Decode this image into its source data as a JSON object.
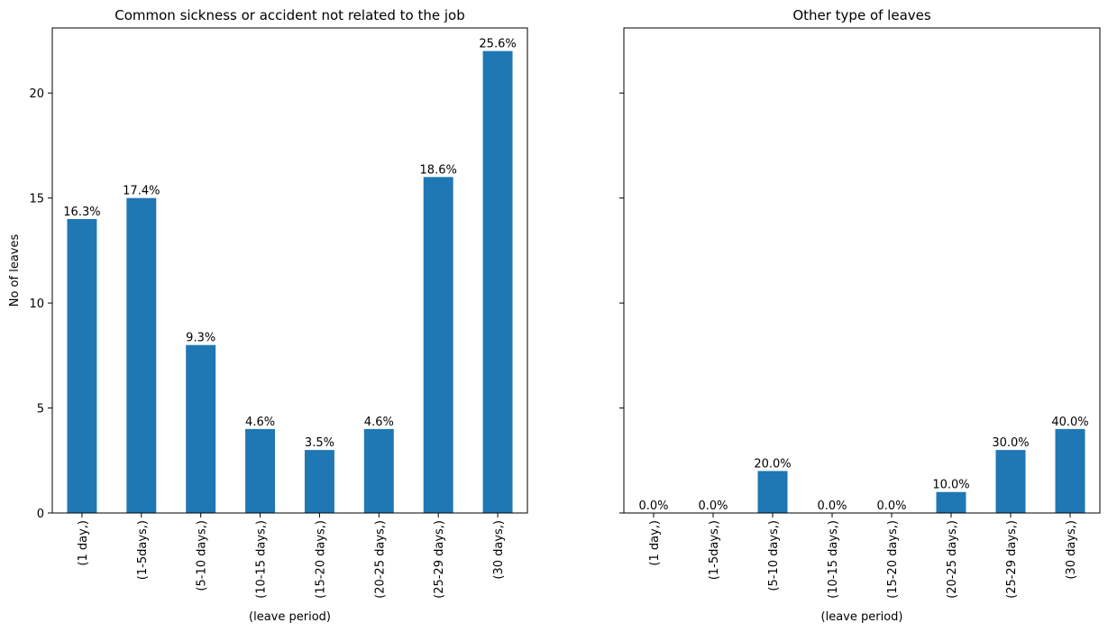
{
  "chart_data": [
    {
      "type": "bar",
      "title": "Common sickness  or accident not related to the job",
      "xlabel": "(leave period)",
      "ylabel": "No of leaves",
      "categories": [
        "(1 day,)",
        "(1-5days,)",
        "(5-10 days,)",
        "(10-15 days,)",
        "(15-20 days,)",
        "(20-25 days,)",
        "(25-29 days,)",
        "(30 days,)"
      ],
      "values": [
        14,
        15,
        8,
        4,
        3,
        4,
        16,
        22
      ],
      "labels": [
        "16.3%",
        "17.4%",
        "9.3%",
        "4.6%",
        "3.5%",
        "4.6%",
        "18.6%",
        "25.6%"
      ],
      "ylim": [
        0,
        23.1
      ],
      "yticks": [
        0,
        5,
        10,
        15,
        20
      ],
      "show_ytick_labels": true,
      "grid": false,
      "color": "#1f77b4"
    },
    {
      "type": "bar",
      "title": "Other type of leaves",
      "xlabel": "(leave period)",
      "ylabel": "",
      "categories": [
        "(1 day,)",
        "(1-5days,)",
        "(5-10 days,)",
        "(10-15 days,)",
        "(15-20 days,)",
        "(20-25 days,)",
        "(25-29 days,)",
        "(30 days,)"
      ],
      "values": [
        0,
        0,
        2,
        0,
        0,
        1,
        3,
        4
      ],
      "labels": [
        "0.0%",
        "0.0%",
        "20.0%",
        "0.0%",
        "0.0%",
        "10.0%",
        "30.0%",
        "40.0%"
      ],
      "ylim": [
        0,
        23.1
      ],
      "yticks": [
        0,
        5,
        10,
        15,
        20
      ],
      "show_ytick_labels": false,
      "grid": false,
      "color": "#1f77b4"
    }
  ]
}
